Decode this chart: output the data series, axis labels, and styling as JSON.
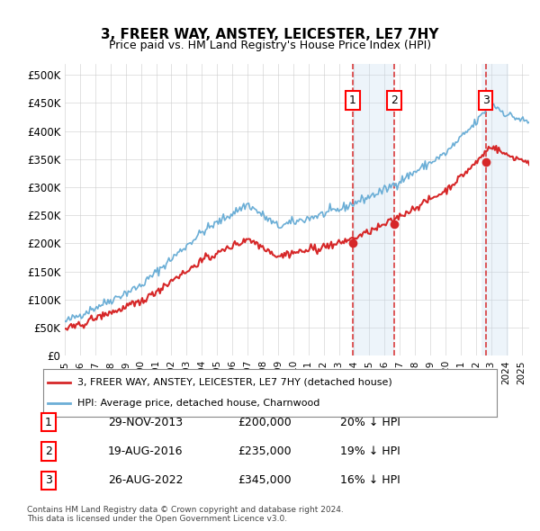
{
  "title": "3, FREER WAY, ANSTEY, LEICESTER, LE7 7HY",
  "subtitle": "Price paid vs. HM Land Registry's House Price Index (HPI)",
  "ylabel": "",
  "ylim": [
    0,
    520000
  ],
  "yticks": [
    0,
    50000,
    100000,
    150000,
    200000,
    250000,
    300000,
    350000,
    400000,
    450000,
    500000
  ],
  "ytick_labels": [
    "£0",
    "£50K",
    "£100K",
    "£150K",
    "£200K",
    "£250K",
    "£300K",
    "£350K",
    "£400K",
    "£450K",
    "£500K"
  ],
  "hpi_color": "#6baed6",
  "price_color": "#d62728",
  "sale_marker_color": "#d62728",
  "vline_color": "#d62728",
  "shade_color": "#c6dbef",
  "transaction_labels": [
    "1",
    "2",
    "3"
  ],
  "transaction_dates_num": [
    2013.91,
    2016.63,
    2022.65
  ],
  "transaction_prices": [
    200000,
    235000,
    345000
  ],
  "transaction_dates_str": [
    "29-NOV-2013",
    "19-AUG-2016",
    "26-AUG-2022"
  ],
  "transaction_prices_str": [
    "£200,000",
    "£235,000",
    "£345,000"
  ],
  "transaction_hpi_str": [
    "20% ↓ HPI",
    "19% ↓ HPI",
    "16% ↓ HPI"
  ],
  "legend_label_price": "3, FREER WAY, ANSTEY, LEICESTER, LE7 7HY (detached house)",
  "legend_label_hpi": "HPI: Average price, detached house, Charnwood",
  "footnote": "Contains HM Land Registry data © Crown copyright and database right 2024.\nThis data is licensed under the Open Government Licence v3.0.",
  "background_color": "#ffffff",
  "grid_color": "#cccccc"
}
